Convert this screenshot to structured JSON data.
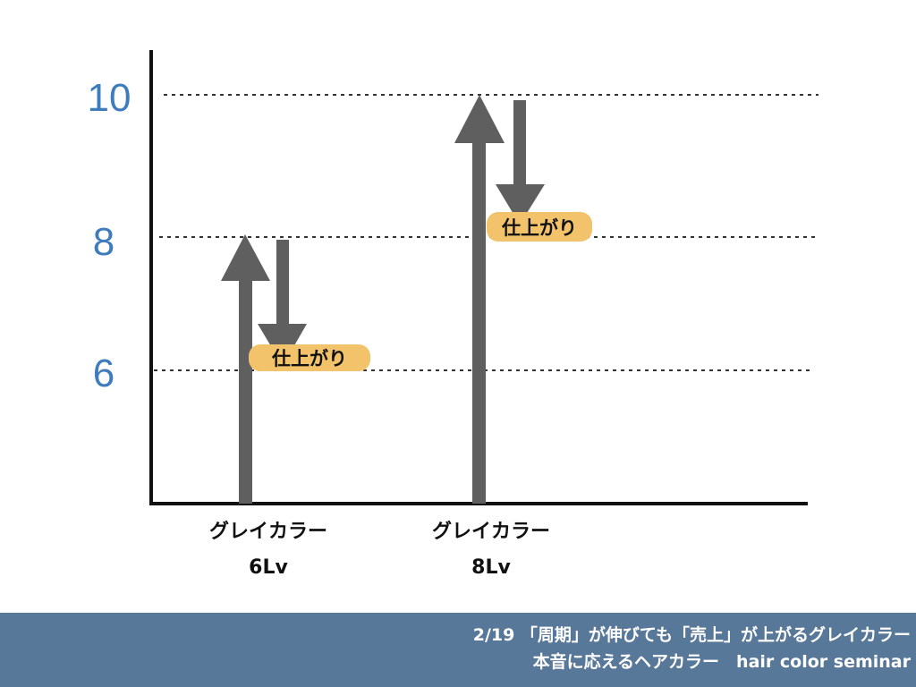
{
  "y_axis": {
    "ticks": [
      {
        "value": 10,
        "label": "10"
      },
      {
        "value": 8,
        "label": "8"
      },
      {
        "value": 6,
        "label": "6"
      }
    ]
  },
  "groups": [
    {
      "category": "グレイカラー",
      "level": "6Lv",
      "dye_level": 8,
      "result_level": 6,
      "result_label": "仕上がり"
    },
    {
      "category": "グレイカラー",
      "level": "8Lv",
      "dye_level": 10,
      "result_level": 8,
      "result_label": "仕上がり"
    }
  ],
  "colors": {
    "arrow": "#5f5f5f",
    "axis": "#111111",
    "tick_label": "#3f7cbc",
    "result_badge": "#f3c36b",
    "footer_bg": "#587899"
  },
  "footer": {
    "line1": "2/19 「周期」が伸びても「売上」が上がるグレイカラー",
    "line2": "本音に応えるヘアカラー　hair color seminar"
  }
}
